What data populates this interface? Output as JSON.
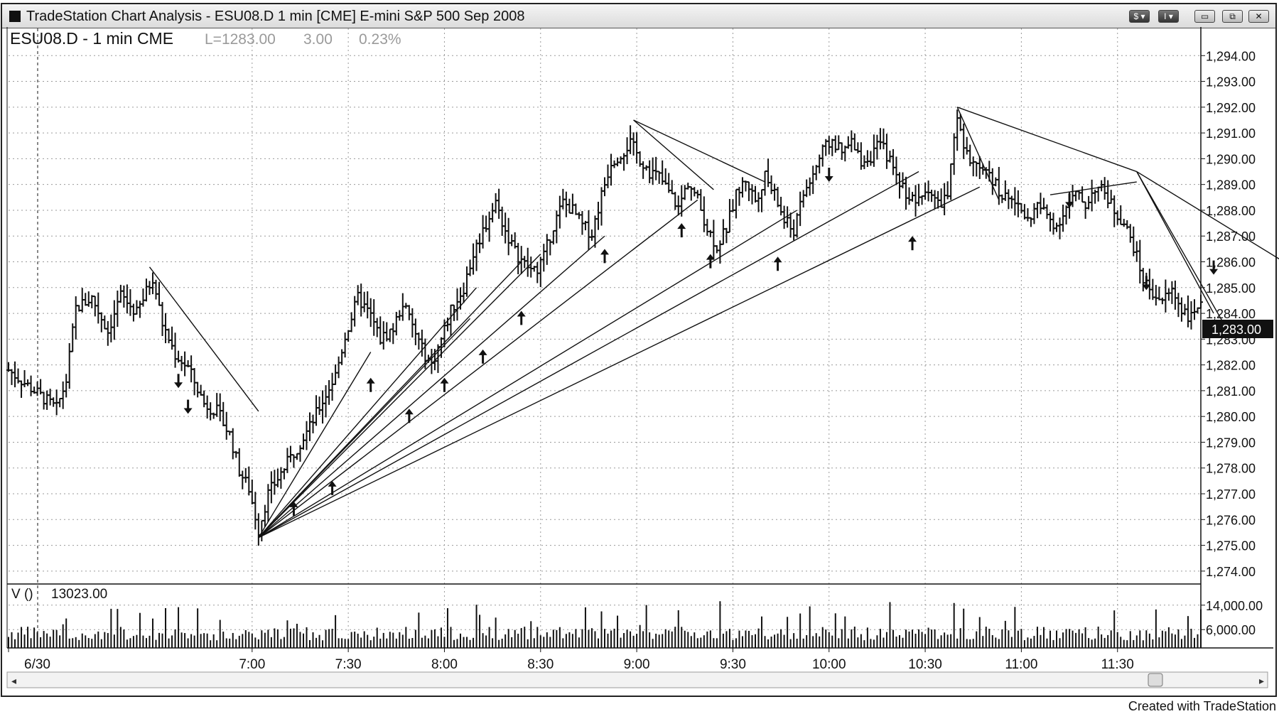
{
  "window": {
    "title": "TradeStation Chart Analysis - ESU08.D 1 min [CME] E-mini S&P 500 Sep 2008",
    "workspace_buttons": [
      "$",
      "I"
    ],
    "controls": [
      "minimize-icon",
      "restore-icon",
      "close-icon"
    ]
  },
  "chart_header": {
    "symbol": "ESU08.D - 1 min CME",
    "last": "L=1283.00",
    "change": "3.00",
    "pct": "0.23%"
  },
  "volume_header": {
    "label": "V ()",
    "value": "13023.00"
  },
  "footer": "Created with TradeStation",
  "colors": {
    "bars": "#111111",
    "grid": "#9a9a9a",
    "last_tag_bg": "#111111",
    "last_tag_fg": "#ffffff"
  },
  "chart_data": {
    "type": "bar",
    "subtype": "ohlc-price-bars-with-volume",
    "bar_interval": "1 min",
    "x_tick_labels": [
      "6/30",
      "7:00",
      "7:30",
      "8:00",
      "8:30",
      "9:00",
      "9:30",
      "10:00",
      "10:30",
      "11:00",
      "11:30"
    ],
    "y_tick_labels": [
      "1,294.00",
      "1,293.00",
      "1,292.00",
      "1,291.00",
      "1,290.00",
      "1,289.00",
      "1,288.00",
      "1,287.00",
      "1,286.00",
      "1,285.00",
      "1,284.00",
      "1,283.00",
      "1,282.00",
      "1,281.00",
      "1,280.00",
      "1,279.00",
      "1,278.00",
      "1,277.00",
      "1,276.00",
      "1,275.00",
      "1,274.00"
    ],
    "ylim": [
      1273.5,
      1295.0
    ],
    "last_price_label": "1,283.00",
    "volume_tick_labels": [
      "14,000.00",
      "6,000.00"
    ],
    "volume_ylim": [
      0,
      20000
    ],
    "grid": true,
    "x_time_range_minutes": [
      -76,
      296
    ],
    "price_path": [
      [
        -76,
        1281.8
      ],
      [
        -68,
        1281.0
      ],
      [
        -61,
        1280.3
      ],
      [
        -58,
        1281.4
      ],
      [
        -55,
        1284.2
      ],
      [
        -50,
        1284.6
      ],
      [
        -45,
        1283.3
      ],
      [
        -41,
        1284.7
      ],
      [
        -36,
        1284.0
      ],
      [
        -31,
        1285.4
      ],
      [
        -28,
        1283.6
      ],
      [
        -24,
        1282.4
      ],
      [
        -20,
        1281.9
      ],
      [
        -15,
        1280.5
      ],
      [
        -11,
        1280.2
      ],
      [
        -7,
        1279.3
      ],
      [
        -4,
        1277.9
      ],
      [
        -1,
        1277.2
      ],
      [
        2,
        1275.6
      ],
      [
        5,
        1277.0
      ],
      [
        9,
        1277.8
      ],
      [
        13,
        1278.6
      ],
      [
        18,
        1279.6
      ],
      [
        22,
        1280.6
      ],
      [
        26,
        1281.6
      ],
      [
        29,
        1283.1
      ],
      [
        33,
        1284.6
      ],
      [
        37,
        1283.9
      ],
      [
        40,
        1283.0
      ],
      [
        44,
        1283.4
      ],
      [
        47,
        1284.4
      ],
      [
        50,
        1283.5
      ],
      [
        53,
        1282.6
      ],
      [
        56,
        1282.0
      ],
      [
        59,
        1283.0
      ],
      [
        62,
        1284.1
      ],
      [
        66,
        1285.0
      ],
      [
        69,
        1286.3
      ],
      [
        72,
        1287.2
      ],
      [
        76,
        1288.3
      ],
      [
        79,
        1287.2
      ],
      [
        82,
        1286.4
      ],
      [
        85,
        1285.9
      ],
      [
        88,
        1285.6
      ],
      [
        91,
        1286.2
      ],
      [
        94,
        1287.4
      ],
      [
        97,
        1288.3
      ],
      [
        100,
        1288.0
      ],
      [
        103,
        1287.4
      ],
      [
        106,
        1287.1
      ],
      [
        109,
        1288.6
      ],
      [
        112,
        1289.9
      ],
      [
        115,
        1290.2
      ],
      [
        118,
        1290.6
      ],
      [
        121,
        1290.0
      ],
      [
        124,
        1289.5
      ],
      [
        127,
        1289.3
      ],
      [
        130,
        1288.7
      ],
      [
        133,
        1288.1
      ],
      [
        136,
        1289.1
      ],
      [
        139,
        1288.4
      ],
      [
        142,
        1287.3
      ],
      [
        145,
        1286.6
      ],
      [
        148,
        1287.3
      ],
      [
        151,
        1288.6
      ],
      [
        154,
        1289.2
      ],
      [
        157,
        1288.4
      ],
      [
        160,
        1289.3
      ],
      [
        163,
        1288.6
      ],
      [
        166,
        1287.6
      ],
      [
        169,
        1287.2
      ],
      [
        172,
        1288.6
      ],
      [
        175,
        1289.4
      ],
      [
        178,
        1290.3
      ],
      [
        181,
        1290.7
      ],
      [
        184,
        1290.2
      ],
      [
        187,
        1290.6
      ],
      [
        190,
        1289.9
      ],
      [
        193,
        1290.1
      ],
      [
        196,
        1290.6
      ],
      [
        199,
        1289.9
      ],
      [
        202,
        1289.1
      ],
      [
        205,
        1288.5
      ],
      [
        208,
        1288.3
      ],
      [
        211,
        1288.9
      ],
      [
        214,
        1288.2
      ],
      [
        217,
        1288.6
      ],
      [
        220,
        1291.6
      ],
      [
        222,
        1290.3
      ],
      [
        224,
        1290.0
      ],
      [
        227,
        1289.4
      ],
      [
        230,
        1289.5
      ],
      [
        233,
        1288.7
      ],
      [
        236,
        1288.4
      ],
      [
        239,
        1288.2
      ],
      [
        242,
        1287.6
      ],
      [
        245,
        1288.2
      ],
      [
        248,
        1287.8
      ],
      [
        251,
        1287.4
      ],
      [
        254,
        1288.1
      ],
      [
        257,
        1288.6
      ],
      [
        260,
        1288.2
      ],
      [
        263,
        1288.9
      ],
      [
        266,
        1288.7
      ],
      [
        269,
        1288.0
      ],
      [
        272,
        1287.5
      ],
      [
        275,
        1286.6
      ],
      [
        278,
        1285.3
      ],
      [
        281,
        1284.8
      ],
      [
        284,
        1284.5
      ],
      [
        287,
        1284.9
      ],
      [
        290,
        1284.2
      ],
      [
        293,
        1283.8
      ],
      [
        296,
        1284.6
      ]
    ],
    "bar_colors": "black OHLC bars",
    "annotations": {
      "trendlines": 18,
      "up_arrows": 13,
      "down_arrows": 8
    }
  }
}
